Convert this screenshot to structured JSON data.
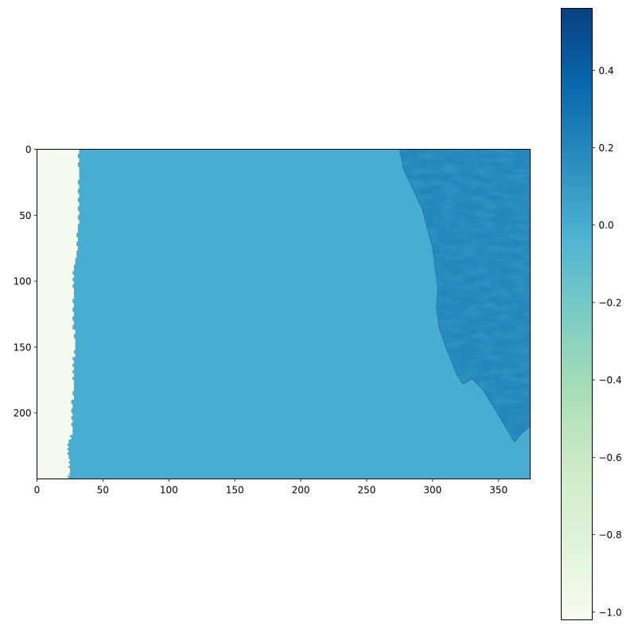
{
  "chart_data": {
    "type": "heatmap",
    "title": "",
    "xlabel": "",
    "ylabel": "",
    "colormap": "GnBu",
    "colormap_stops": [
      "#f7fcf0",
      "#e0f3db",
      "#ccebc5",
      "#a8ddb5",
      "#7bccc4",
      "#4eb3d3",
      "#2b8cbe",
      "#0868ac",
      "#084081"
    ],
    "grid": false,
    "image_size": {
      "cols": 374,
      "rows": 250
    },
    "xlim": [
      0,
      374
    ],
    "ylim": [
      250,
      0
    ],
    "x_ticks": [
      0,
      50,
      100,
      150,
      200,
      250,
      300,
      350
    ],
    "y_ticks": [
      0,
      50,
      100,
      150,
      200
    ],
    "value_range": [
      -1.02,
      0.56
    ],
    "colorbar": {
      "placement": "right",
      "ticks": [
        0.4,
        0.2,
        0.0,
        -0.2,
        -0.4,
        -0.6,
        -0.8,
        -1.0
      ],
      "tick_labels": [
        "0.4",
        "0.2",
        "0.0",
        "−0.2",
        "−0.4",
        "−0.6",
        "−0.8",
        "−1.0"
      ]
    },
    "regions": {
      "nodata_value": -1.0,
      "water_value": 0.0,
      "land_value_range": [
        0.05,
        0.45
      ],
      "left_nodata_edge": [
        {
          "row": 0,
          "col": 31
        },
        {
          "row": 20,
          "col": 32
        },
        {
          "row": 40,
          "col": 31
        },
        {
          "row": 60,
          "col": 31
        },
        {
          "row": 80,
          "col": 30
        },
        {
          "row": 95,
          "col": 27
        },
        {
          "row": 110,
          "col": 28
        },
        {
          "row": 130,
          "col": 27
        },
        {
          "row": 150,
          "col": 29
        },
        {
          "row": 165,
          "col": 27
        },
        {
          "row": 180,
          "col": 28
        },
        {
          "row": 200,
          "col": 26
        },
        {
          "row": 215,
          "col": 27
        },
        {
          "row": 225,
          "col": 23
        },
        {
          "row": 235,
          "col": 24
        },
        {
          "row": 245,
          "col": 25
        },
        {
          "row": 250,
          "col": 23
        }
      ],
      "coastline": [
        {
          "row": 0,
          "col": 275
        },
        {
          "row": 15,
          "col": 278
        },
        {
          "row": 30,
          "col": 285
        },
        {
          "row": 45,
          "col": 292
        },
        {
          "row": 60,
          "col": 296
        },
        {
          "row": 75,
          "col": 300
        },
        {
          "row": 90,
          "col": 302
        },
        {
          "row": 105,
          "col": 304
        },
        {
          "row": 120,
          "col": 303
        },
        {
          "row": 135,
          "col": 305
        },
        {
          "row": 150,
          "col": 310
        },
        {
          "row": 160,
          "col": 314
        },
        {
          "row": 170,
          "col": 318
        },
        {
          "row": 178,
          "col": 323
        },
        {
          "row": 174,
          "col": 330
        },
        {
          "row": 182,
          "col": 338
        },
        {
          "row": 195,
          "col": 346
        },
        {
          "row": 205,
          "col": 352
        },
        {
          "row": 215,
          "col": 358
        },
        {
          "row": 222,
          "col": 362
        },
        {
          "row": 215,
          "col": 368
        },
        {
          "row": 210,
          "col": 374
        }
      ]
    }
  }
}
